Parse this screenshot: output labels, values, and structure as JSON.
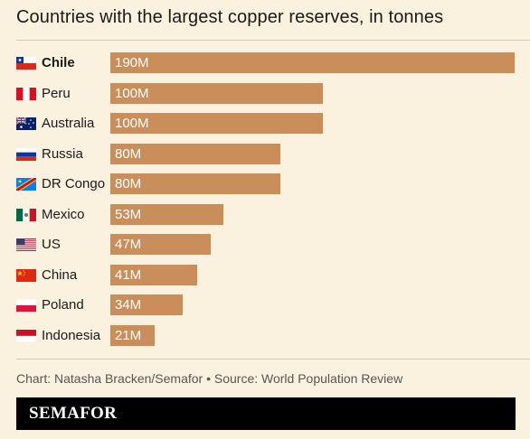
{
  "header": {
    "title": "Countries with the largest copper reserves, in tonnes"
  },
  "chart_data": {
    "type": "bar",
    "orientation": "horizontal",
    "title": "Countries with the largest copper reserves, in tonnes",
    "categories": [
      "Chile",
      "Peru",
      "Australia",
      "Russia",
      "DR Congo",
      "Mexico",
      "US",
      "China",
      "Poland",
      "Indonesia"
    ],
    "values": [
      190,
      100,
      100,
      80,
      80,
      53,
      47,
      41,
      34,
      21
    ],
    "value_labels": [
      "190M",
      "100M",
      "100M",
      "80M",
      "80M",
      "53M",
      "47M",
      "41M",
      "34M",
      "21M"
    ],
    "unit": "million tonnes",
    "xlim": [
      0,
      190
    ],
    "grid": false,
    "legend": "none",
    "bar_color": "#c98e59",
    "highlight_category": "Chile",
    "flags": [
      "chile-flag-icon",
      "peru-flag-icon",
      "australia-flag-icon",
      "russia-flag-icon",
      "dr-congo-flag-icon",
      "mexico-flag-icon",
      "us-flag-icon",
      "china-flag-icon",
      "poland-flag-icon",
      "indonesia-flag-icon"
    ]
  },
  "footer": {
    "credit": "Chart: Natasha Bracken/Semafor • Source: World Population Review",
    "brand": "SEMAFOR"
  }
}
